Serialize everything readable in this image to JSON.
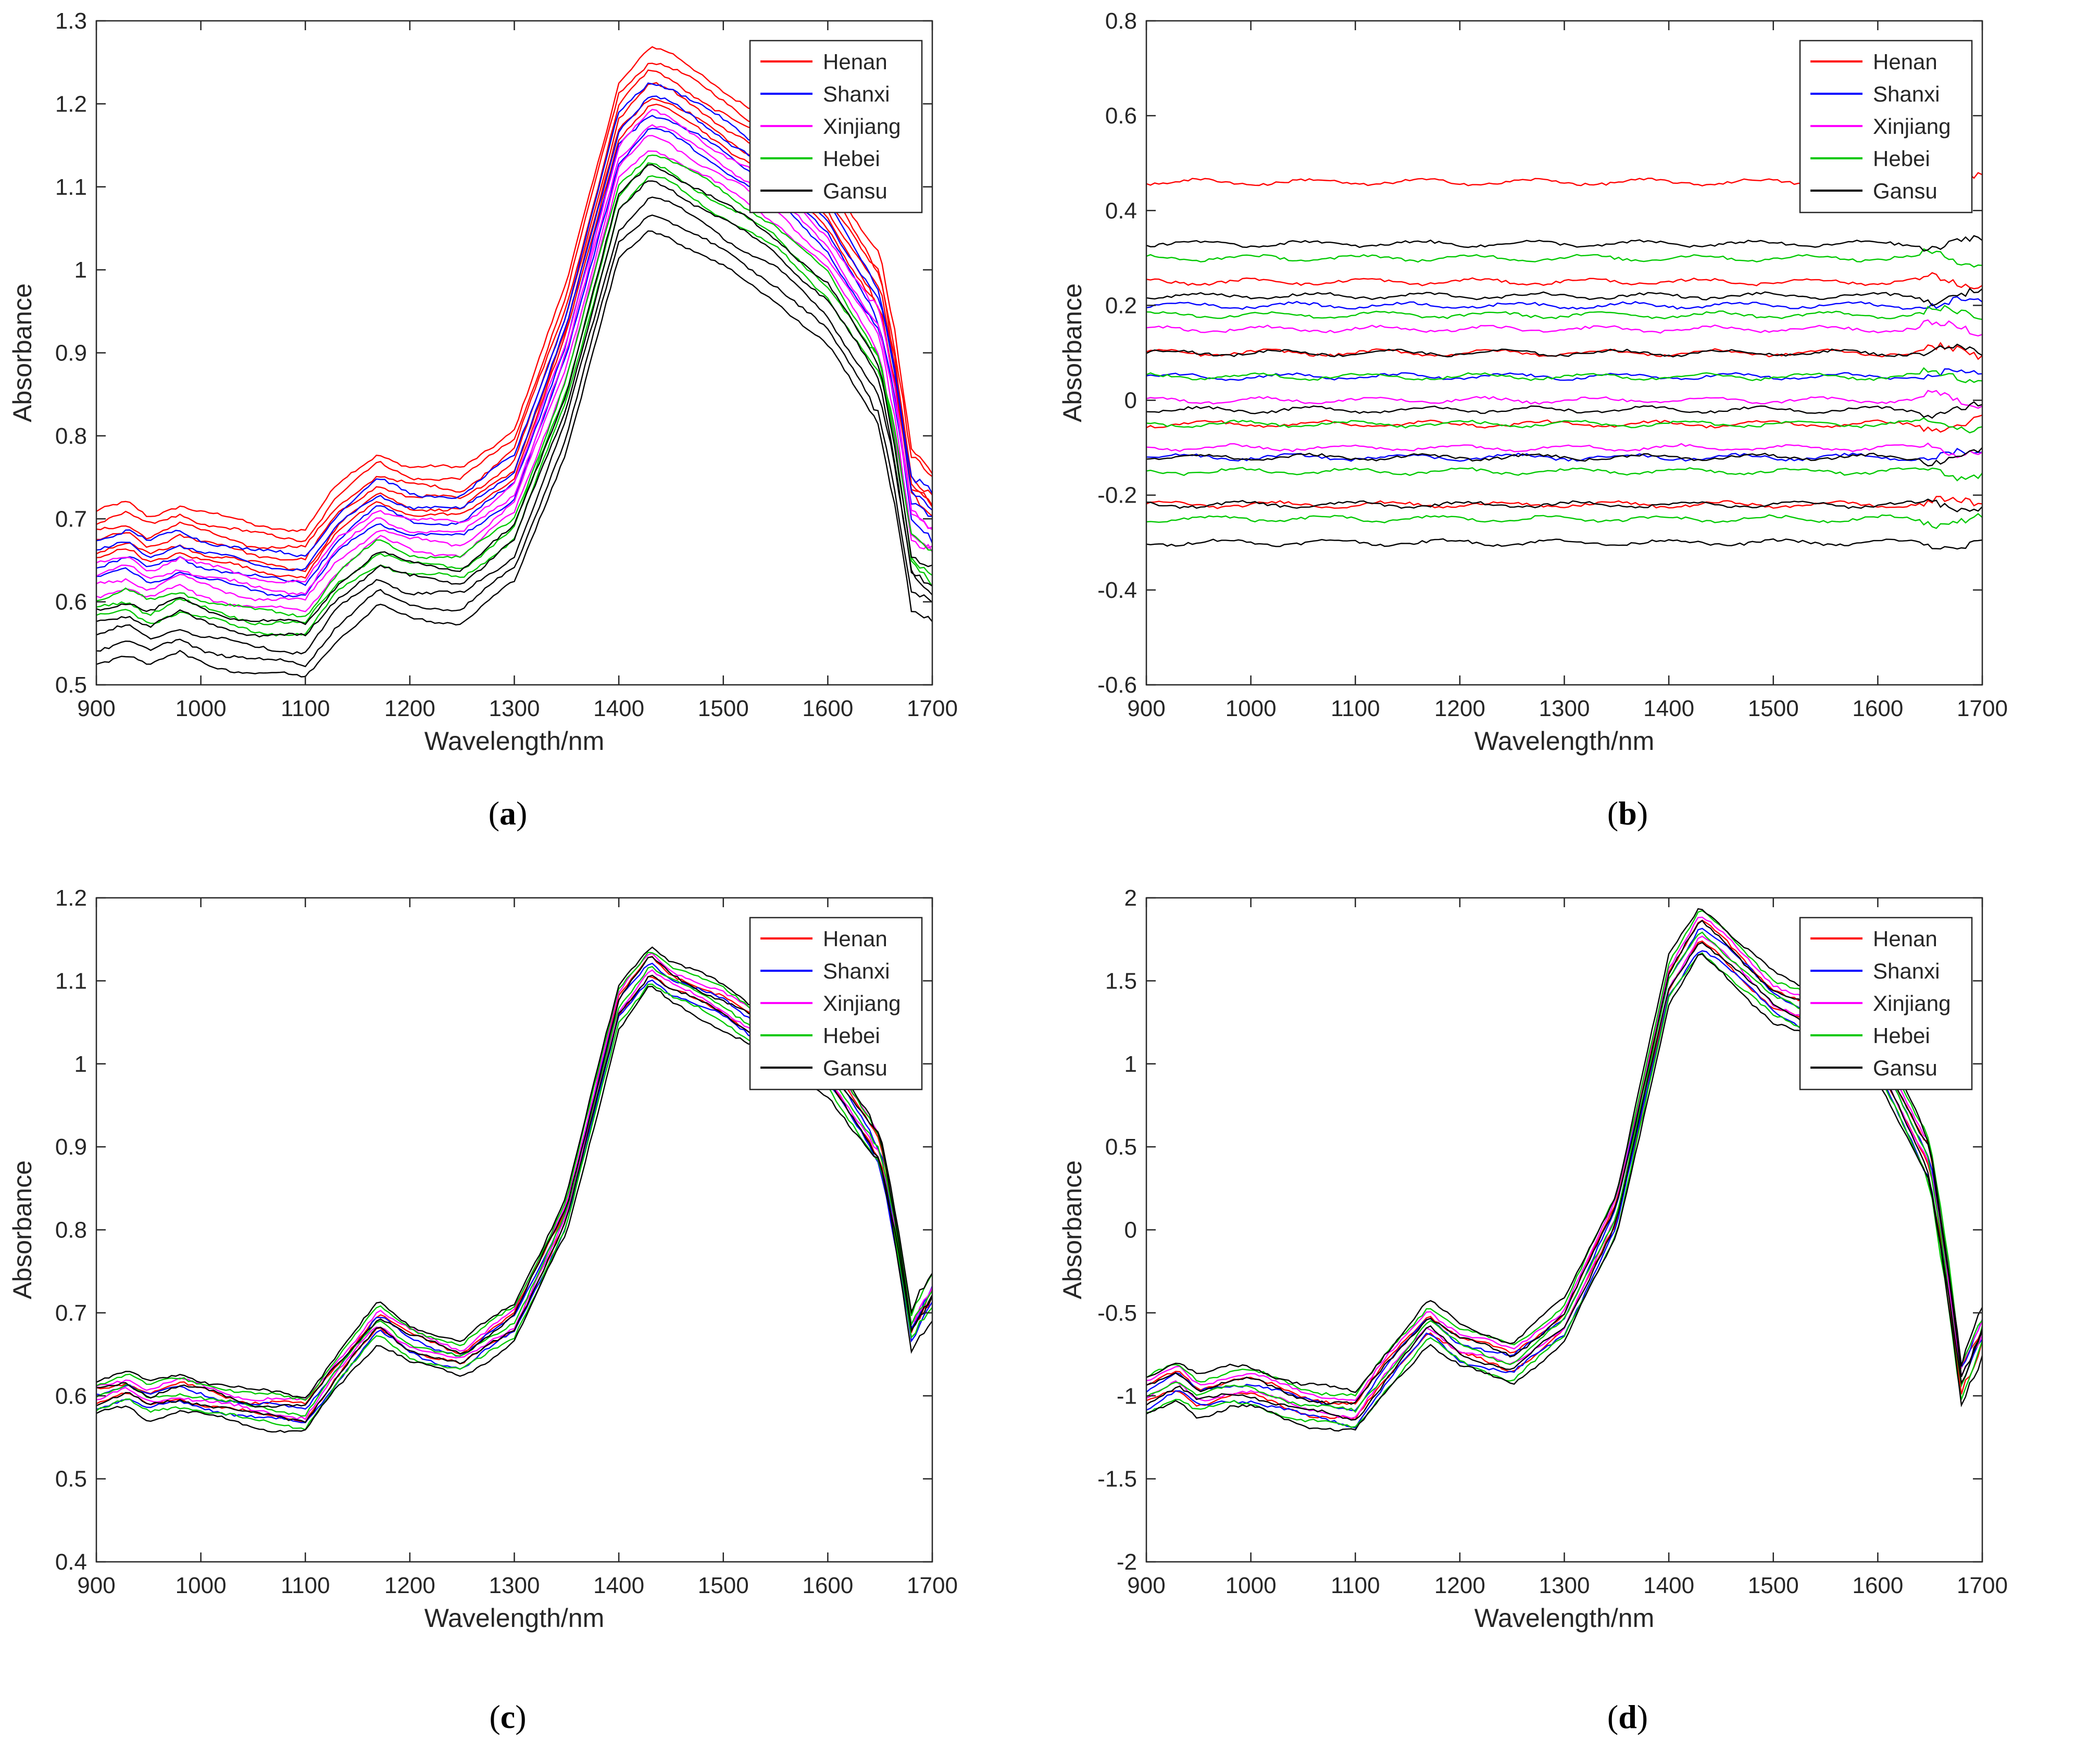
{
  "figure": {
    "panels": [
      {
        "letter": "a"
      },
      {
        "letter": "b"
      },
      {
        "letter": "c"
      },
      {
        "letter": "d"
      }
    ]
  },
  "colors": {
    "Henan": "#ff0000",
    "Shanxi": "#0000ff",
    "Xinjiang": "#ff00ff",
    "Hebei": "#00c800",
    "Gansu": "#000000"
  },
  "chart_data": [
    {
      "id": "a",
      "type": "line",
      "title": "",
      "xlabel": "Wavelength/nm",
      "ylabel": "Absorbance",
      "xlim": [
        900,
        1700
      ],
      "ylim": [
        0.5,
        1.3
      ],
      "xticks": [
        "900",
        "1000",
        "1100",
        "1200",
        "1300",
        "1400",
        "1500",
        "1600",
        "1700"
      ],
      "yticks": [
        "0.5",
        "0.6",
        "0.7",
        "0.8",
        "0.9",
        "1",
        "1.1",
        "1.2",
        "1.3"
      ],
      "legend": [
        "Henan",
        "Shanxi",
        "Xinjiang",
        "Hebei",
        "Gansu"
      ],
      "legend_position": "top-right",
      "profile": {
        "x": [
          900,
          930,
          950,
          980,
          1000,
          1050,
          1100,
          1130,
          1170,
          1200,
          1250,
          1300,
          1350,
          1400,
          1430,
          1450,
          1500,
          1550,
          1600,
          1650,
          1665,
          1680,
          1700
        ],
        "y": [
          0.66,
          0.67,
          0.655,
          0.67,
          0.66,
          0.645,
          0.64,
          0.69,
          0.73,
          0.715,
          0.71,
          0.76,
          0.93,
          1.17,
          1.21,
          1.2,
          1.16,
          1.12,
          1.06,
          0.96,
          0.86,
          0.73,
          0.71
        ]
      },
      "series": [
        {
          "name": "Henan",
          "offsets": [
            0.06,
            0.045,
            0.03,
            0.015,
            0.0,
            -0.01
          ]
        },
        {
          "name": "Shanxi",
          "offsets": [
            0.02,
            0.0,
            -0.02,
            -0.04
          ]
        },
        {
          "name": "Xinjiang",
          "offsets": [
            -0.02,
            -0.035,
            -0.05,
            -0.065
          ]
        },
        {
          "name": "Hebei",
          "offsets": [
            -0.07,
            -0.085,
            -0.1
          ]
        },
        {
          "name": "Gansu",
          "offsets": [
            -0.085,
            -0.105,
            -0.125,
            -0.145,
            -0.165
          ]
        }
      ]
    },
    {
      "id": "b",
      "type": "line",
      "title": "",
      "xlabel": "Wavelength/nm",
      "ylabel": "Absorbance",
      "xlim": [
        900,
        1700
      ],
      "ylim": [
        -0.6,
        0.8
      ],
      "xticks": [
        "900",
        "1000",
        "1100",
        "1200",
        "1300",
        "1400",
        "1500",
        "1600",
        "1700"
      ],
      "yticks": [
        "-0.6",
        "-0.4",
        "-0.2",
        "0",
        "0.2",
        "0.4",
        "0.6",
        "0.8"
      ],
      "legend": [
        "Henan",
        "Shanxi",
        "Xinjiang",
        "Hebei",
        "Gansu"
      ],
      "legend_position": "top-right",
      "profile": {
        "x": [
          900,
          1000,
          1100,
          1200,
          1300,
          1350,
          1400,
          1450,
          1500,
          1600,
          1650,
          1700
        ],
        "y": [
          0.0,
          0.0,
          0.0,
          0.0,
          0.0,
          0.0,
          0.0,
          0.0,
          0.0,
          0.0,
          0.0,
          0.0
        ]
      },
      "series": [
        {
          "name": "Henan",
          "offsets": [
            0.46,
            0.25,
            0.1,
            -0.05,
            -0.22
          ]
        },
        {
          "name": "Shanxi",
          "offsets": [
            0.2,
            0.05,
            -0.12
          ]
        },
        {
          "name": "Xinjiang",
          "offsets": [
            0.15,
            0.0,
            -0.1
          ]
        },
        {
          "name": "Hebei",
          "offsets": [
            0.3,
            0.18,
            0.05,
            -0.05,
            -0.15,
            -0.25
          ]
        },
        {
          "name": "Gansu",
          "offsets": [
            0.33,
            0.22,
            0.1,
            -0.02,
            -0.12,
            -0.22,
            -0.3
          ]
        }
      ]
    },
    {
      "id": "c",
      "type": "line",
      "title": "",
      "xlabel": "Wavelength/nm",
      "ylabel": "Absorbance",
      "xlim": [
        900,
        1700
      ],
      "ylim": [
        0.4,
        1.2
      ],
      "xticks": [
        "900",
        "1000",
        "1100",
        "1200",
        "1300",
        "1400",
        "1500",
        "1600",
        "1700"
      ],
      "yticks": [
        "0.4",
        "0.5",
        "0.6",
        "0.7",
        "0.8",
        "0.9",
        "1",
        "1.1",
        "1.2"
      ],
      "legend": [
        "Henan",
        "Shanxi",
        "Xinjiang",
        "Hebei",
        "Gansu"
      ],
      "legend_position": "top-right",
      "profile": {
        "x": [
          900,
          930,
          950,
          980,
          1000,
          1050,
          1100,
          1130,
          1170,
          1200,
          1250,
          1300,
          1350,
          1400,
          1430,
          1450,
          1500,
          1550,
          1600,
          1650,
          1665,
          1680,
          1700
        ],
        "y": [
          0.6,
          0.61,
          0.595,
          0.605,
          0.6,
          0.585,
          0.58,
          0.63,
          0.69,
          0.665,
          0.645,
          0.69,
          0.82,
          1.07,
          1.12,
          1.1,
          1.07,
          1.03,
          0.99,
          0.9,
          0.8,
          0.68,
          0.72
        ]
      },
      "series": [
        {
          "name": "Henan",
          "offsets": [
            0.01,
            -0.01
          ]
        },
        {
          "name": "Shanxi",
          "offsets": [
            0.005,
            -0.015
          ]
        },
        {
          "name": "Xinjiang",
          "offsets": [
            0.015,
            -0.005
          ]
        },
        {
          "name": "Hebei",
          "offsets": [
            0.02,
            0.0,
            -0.02
          ]
        },
        {
          "name": "Gansu",
          "offsets": [
            0.025,
            0.008,
            -0.01,
            -0.028
          ]
        }
      ]
    },
    {
      "id": "d",
      "type": "line",
      "title": "",
      "xlabel": "Wavelength/nm",
      "ylabel": "Absorbance",
      "xlim": [
        900,
        1700
      ],
      "ylim": [
        -2,
        2
      ],
      "xticks": [
        "900",
        "1000",
        "1100",
        "1200",
        "1300",
        "1400",
        "1500",
        "1600",
        "1700"
      ],
      "yticks": [
        "-2",
        "-1.5",
        "-1",
        "-0.5",
        "0",
        "0.5",
        "1",
        "1.5",
        "2"
      ],
      "legend": [
        "Henan",
        "Shanxi",
        "Xinjiang",
        "Hebei",
        "Gansu"
      ],
      "legend_position": "top-right",
      "profile": {
        "x": [
          900,
          930,
          950,
          980,
          1000,
          1050,
          1100,
          1130,
          1170,
          1200,
          1250,
          1300,
          1350,
          1400,
          1430,
          1450,
          1500,
          1550,
          1600,
          1650,
          1665,
          1680,
          1700
        ],
        "y": [
          -1.0,
          -0.9,
          -1.0,
          -0.95,
          -0.95,
          -1.05,
          -1.1,
          -0.85,
          -0.55,
          -0.7,
          -0.8,
          -0.55,
          0.1,
          1.5,
          1.8,
          1.7,
          1.4,
          1.25,
          1.05,
          0.4,
          -0.2,
          -0.9,
          -0.6
        ]
      },
      "series": [
        {
          "name": "Henan",
          "offsets": [
            0.06,
            -0.06
          ]
        },
        {
          "name": "Shanxi",
          "offsets": [
            0.03,
            -0.09
          ]
        },
        {
          "name": "Xinjiang",
          "offsets": [
            0.09,
            -0.03
          ]
        },
        {
          "name": "Hebei",
          "offsets": [
            0.12,
            0.0,
            -0.12
          ]
        },
        {
          "name": "Gansu",
          "offsets": [
            0.15,
            0.05,
            -0.05,
            -0.15
          ]
        }
      ]
    }
  ]
}
